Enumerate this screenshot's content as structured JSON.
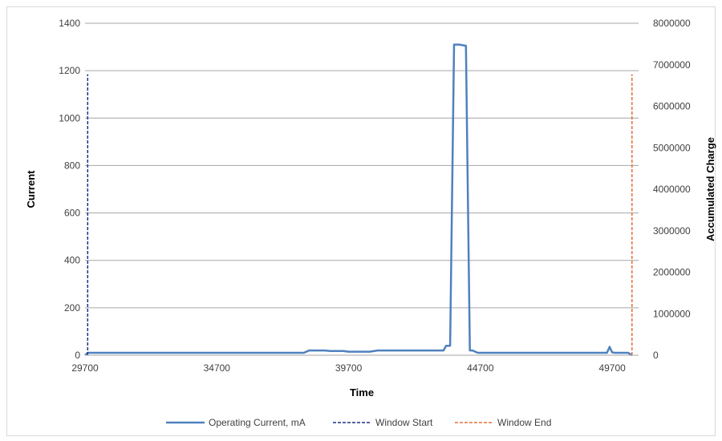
{
  "chart_data": {
    "type": "line",
    "xlabel": "Time",
    "ylabel": "Current",
    "y2label": "Accumulated Charge",
    "xlim": [
      29700,
      50700
    ],
    "ylim": [
      0,
      1400
    ],
    "y2lim": [
      0,
      8000000
    ],
    "x_ticks": [
      29700,
      34700,
      39700,
      44700,
      49700
    ],
    "y_ticks": [
      0,
      200,
      400,
      600,
      800,
      1000,
      1200,
      1400
    ],
    "y2_ticks": [
      0,
      1000000,
      2000000,
      3000000,
      4000000,
      5000000,
      6000000,
      7000000,
      8000000
    ],
    "grid": true,
    "legend_position": "bottom",
    "series": [
      {
        "name": "Operating Current, mA",
        "color": "#4f81bd",
        "style": "solid",
        "x": [
          29700,
          29800,
          38000,
          38200,
          38800,
          39000,
          39500,
          39700,
          40500,
          40800,
          43300,
          43400,
          43550,
          43700,
          43900,
          44150,
          44300,
          44400,
          44600,
          44700,
          49500,
          49600,
          49700,
          49800,
          50300,
          50450
        ],
        "y": [
          0,
          10,
          10,
          20,
          20,
          18,
          18,
          15,
          15,
          20,
          20,
          40,
          40,
          1310,
          1310,
          1305,
          20,
          20,
          10,
          10,
          10,
          35,
          12,
          10,
          10,
          0
        ]
      },
      {
        "name": "Window Start",
        "color": "#1f2e86",
        "style": "dashed",
        "x": [
          29800,
          29800
        ],
        "y": [
          0,
          1185
        ]
      },
      {
        "name": "Window End",
        "color": "#e0703a",
        "style": "dashed",
        "x": [
          50450,
          50450
        ],
        "y": [
          0,
          1185
        ]
      }
    ]
  }
}
